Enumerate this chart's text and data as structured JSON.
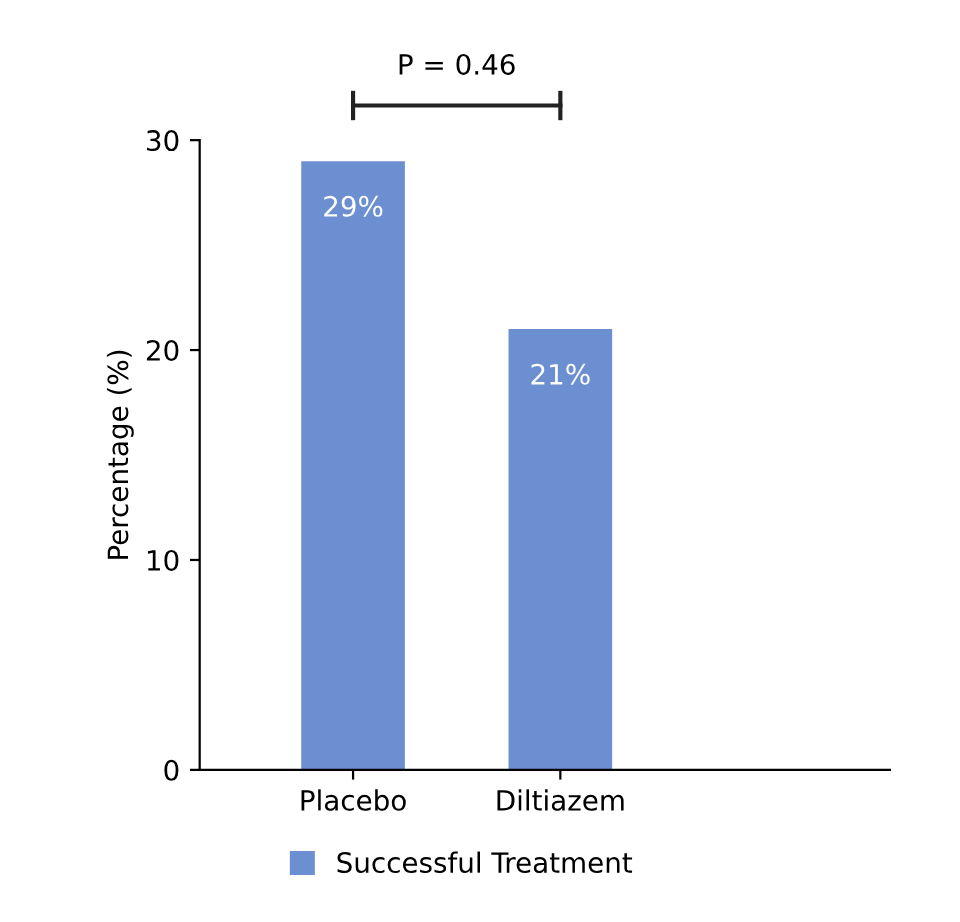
{
  "chart_data": {
    "type": "bar",
    "ylabel": "Percentage (%)",
    "categories": [
      "Placebo",
      "Diltiazem"
    ],
    "series": [
      {
        "name": "Successful Treatment",
        "color": "#6b8fd1",
        "values": [
          29,
          21
        ],
        "value_labels": [
          "29%",
          "21%"
        ]
      }
    ],
    "ylim": [
      0,
      30
    ],
    "yticks": [
      0,
      10,
      20,
      30
    ],
    "grid": false,
    "legend": "bottom",
    "annotations": [
      "P = 0.46"
    ]
  }
}
